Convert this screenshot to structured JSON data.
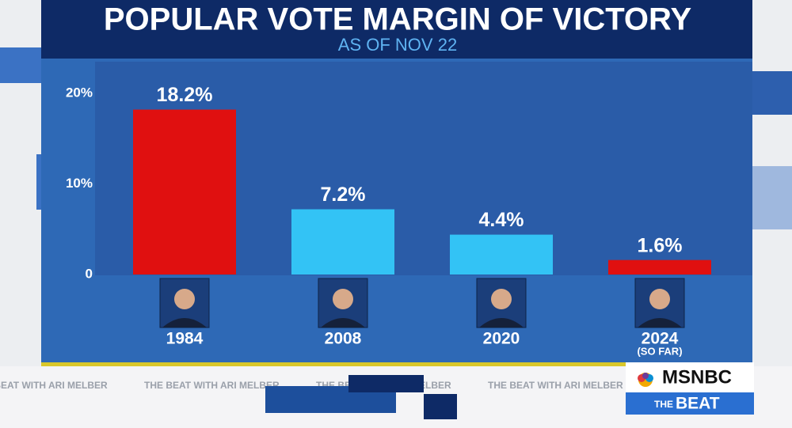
{
  "chart_data": {
    "type": "bar",
    "title": "POPULAR VOTE MARGIN OF VICTORY",
    "subtitle": "AS OF NOV 22",
    "categories": [
      "1984",
      "2008",
      "2020",
      "2024"
    ],
    "category_note": "(SO FAR)",
    "values": [
      18.2,
      7.2,
      4.4,
      1.6
    ],
    "value_labels": [
      "18.2%",
      "7.2%",
      "4.4%",
      "1.6%"
    ],
    "colors": [
      "#e01010",
      "#33c3f5",
      "#33c3f5",
      "#e01010"
    ],
    "ylim": [
      0,
      22
    ],
    "yticks": [
      {
        "value": 0,
        "label": "0"
      },
      {
        "value": 10,
        "label": "10%"
      },
      {
        "value": 20,
        "label": "20%"
      }
    ],
    "grid": false
  },
  "branding": {
    "ticker": "THE BEAT WITH ARI MELBER",
    "network": "MSNBC",
    "show_prefix": "THE",
    "show": "BEAT"
  }
}
